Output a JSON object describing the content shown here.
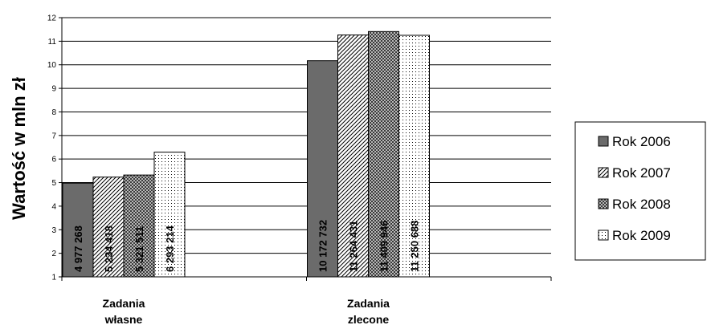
{
  "chart_data": {
    "type": "bar",
    "categories": [
      "Zadania\nwłasne",
      "Zadania\nzlecone"
    ],
    "ylabel": "Wartość w mln zł",
    "xlabel": "",
    "ylim": [
      1,
      12
    ],
    "yticks": [
      1,
      2,
      3,
      4,
      5,
      6,
      7,
      8,
      9,
      10,
      11,
      12
    ],
    "grid": true,
    "legend_position": "right",
    "series": [
      {
        "name": "Rok 2006",
        "values": [
          4.977268,
          10.172732
        ],
        "labels": [
          "4 977 268",
          "10 172 732"
        ],
        "fill": "solid",
        "color": "#6b6b6b"
      },
      {
        "name": "Rok 2007",
        "values": [
          5.234418,
          11.264431
        ],
        "labels": [
          "5 234 418",
          "11 264 431"
        ],
        "fill": "diagonal-hatch",
        "color": "#ffffff"
      },
      {
        "name": "Rok 2008",
        "values": [
          5.321511,
          11.409946
        ],
        "labels": [
          "5 321 511",
          "11 409 946"
        ],
        "fill": "checker",
        "color": "#8c8c8c"
      },
      {
        "name": "Rok 2009",
        "values": [
          6.293214,
          11.250688
        ],
        "labels": [
          "6 293 214",
          "11 250 688"
        ],
        "fill": "dots",
        "color": "#ffffff"
      }
    ]
  }
}
